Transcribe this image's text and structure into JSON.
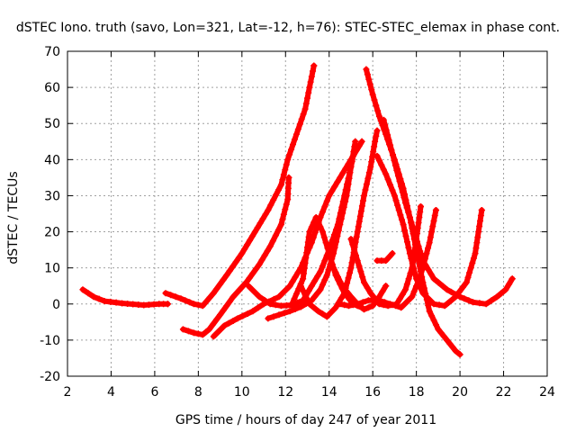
{
  "chart_data": {
    "type": "scatter",
    "title": "dSTEC Iono. truth (savo, Lon=321, Lat=-12, h=76): STEC-STEC_elemax in phase cont.",
    "xlabel": "GPS time / hours of day 247 of year 2011",
    "ylabel": "dSTEC  / TECUs",
    "xlim": [
      2,
      24
    ],
    "ylim": [
      -20,
      70
    ],
    "xticks": [
      2,
      4,
      6,
      8,
      10,
      12,
      14,
      16,
      18,
      20,
      22,
      24
    ],
    "yticks": [
      -20,
      -10,
      0,
      10,
      20,
      30,
      40,
      50,
      60,
      70
    ],
    "grid": true,
    "marker": "plus",
    "color": "#ff0000",
    "series": [
      {
        "points": [
          [
            2.7,
            4
          ],
          [
            3.2,
            2
          ],
          [
            3.7,
            0.8
          ],
          [
            4.5,
            0.2
          ],
          [
            5.5,
            -0.3
          ],
          [
            6.2,
            0
          ],
          [
            6.6,
            0
          ]
        ]
      },
      {
        "points": [
          [
            6.5,
            3
          ],
          [
            7.2,
            1.5
          ],
          [
            7.8,
            0
          ],
          [
            8.2,
            -0.5
          ],
          [
            8.7,
            3
          ],
          [
            9.3,
            8
          ],
          [
            10,
            14
          ],
          [
            10.6,
            20
          ],
          [
            11.2,
            26
          ],
          [
            11.8,
            33
          ],
          [
            12.1,
            40
          ],
          [
            12.5,
            47
          ],
          [
            12.9,
            54
          ],
          [
            13.1,
            60
          ],
          [
            13.3,
            66
          ]
        ]
      },
      {
        "points": [
          [
            7.3,
            -7
          ],
          [
            7.8,
            -8
          ],
          [
            8.2,
            -8.5
          ],
          [
            8.5,
            -7
          ],
          [
            9,
            -3
          ],
          [
            9.6,
            2
          ],
          [
            10.2,
            6
          ],
          [
            10.8,
            11
          ],
          [
            11.3,
            16
          ],
          [
            11.8,
            22
          ],
          [
            12.1,
            29
          ],
          [
            12.15,
            35
          ]
        ]
      },
      {
        "points": [
          [
            8.7,
            -9
          ],
          [
            9.2,
            -6
          ],
          [
            9.8,
            -4
          ],
          [
            10.5,
            -2
          ],
          [
            11,
            0
          ],
          [
            11.7,
            2
          ],
          [
            12.2,
            5
          ],
          [
            12.7,
            10
          ],
          [
            13.2,
            17
          ],
          [
            13.6,
            24
          ],
          [
            14,
            30
          ],
          [
            14.5,
            35
          ],
          [
            15,
            40
          ],
          [
            15.5,
            45
          ]
        ]
      },
      {
        "points": [
          [
            10.3,
            5
          ],
          [
            10.8,
            2
          ],
          [
            11.3,
            0
          ],
          [
            11.8,
            -0.5
          ],
          [
            12.3,
            -0.3
          ],
          [
            12.8,
            1
          ],
          [
            13.2,
            5
          ],
          [
            13.6,
            9
          ],
          [
            14,
            15
          ],
          [
            14.4,
            22
          ],
          [
            14.7,
            30
          ],
          [
            15,
            38
          ],
          [
            15.2,
            45
          ]
        ]
      },
      {
        "points": [
          [
            11.2,
            -4
          ],
          [
            11.7,
            -3
          ],
          [
            12.2,
            -2
          ],
          [
            12.7,
            -0.8
          ],
          [
            13.2,
            1
          ],
          [
            13.6,
            4
          ],
          [
            13.9,
            8
          ],
          [
            14.2,
            14
          ],
          [
            14.5,
            22
          ],
          [
            14.8,
            30
          ],
          [
            15.0,
            38
          ],
          [
            15.2,
            44
          ]
        ]
      },
      {
        "points": [
          [
            12.3,
            0
          ],
          [
            12.8,
            7
          ],
          [
            13.1,
            20
          ],
          [
            13.4,
            24
          ],
          [
            13.7,
            20
          ],
          [
            14,
            14
          ],
          [
            14.3,
            8
          ],
          [
            14.7,
            3
          ],
          [
            15.1,
            0
          ],
          [
            15.5,
            -1
          ]
        ]
      },
      {
        "points": [
          [
            12.7,
            5
          ],
          [
            13.1,
            0
          ],
          [
            13.5,
            -2
          ],
          [
            13.9,
            -3.5
          ],
          [
            14.3,
            -1
          ],
          [
            14.7,
            3
          ],
          [
            15.0,
            10
          ],
          [
            15.3,
            20
          ],
          [
            15.6,
            30
          ],
          [
            15.9,
            38
          ],
          [
            16.1,
            45
          ],
          [
            16.2,
            48
          ]
        ]
      },
      {
        "points": [
          [
            14.2,
            10
          ],
          [
            14.6,
            5
          ],
          [
            15.0,
            2
          ],
          [
            15.3,
            0
          ],
          [
            15.6,
            -1.5
          ],
          [
            16.0,
            -0.5
          ],
          [
            16.3,
            2
          ],
          [
            16.6,
            5
          ]
        ]
      },
      {
        "points": [
          [
            14.5,
            0
          ],
          [
            14.9,
            -0.5
          ],
          [
            15.3,
            0
          ],
          [
            15.8,
            1
          ],
          [
            16.3,
            1
          ],
          [
            16.8,
            0
          ],
          [
            17.3,
            -1
          ],
          [
            17.8,
            2
          ],
          [
            18.2,
            8
          ],
          [
            18.6,
            17
          ],
          [
            18.9,
            26
          ]
        ]
      },
      {
        "points": [
          [
            15.0,
            18
          ],
          [
            15.3,
            12
          ],
          [
            15.6,
            6
          ],
          [
            15.9,
            3
          ],
          [
            16.3,
            0
          ],
          [
            16.7,
            -0.5
          ],
          [
            17.1,
            0
          ],
          [
            17.5,
            4
          ],
          [
            17.8,
            10
          ],
          [
            18.0,
            18
          ],
          [
            18.2,
            27
          ]
        ]
      },
      {
        "points": [
          [
            15.7,
            65
          ],
          [
            16.0,
            58
          ],
          [
            16.3,
            52
          ],
          [
            16.6,
            47
          ],
          [
            17.0,
            40
          ],
          [
            17.4,
            32
          ],
          [
            17.7,
            24
          ],
          [
            18.0,
            15
          ],
          [
            18.3,
            6
          ],
          [
            18.6,
            -2
          ],
          [
            19.0,
            -7
          ],
          [
            19.4,
            -10
          ],
          [
            19.8,
            -13
          ],
          [
            20.0,
            -14
          ]
        ]
      },
      {
        "points": [
          [
            16.2,
            41
          ],
          [
            16.6,
            36
          ],
          [
            17.0,
            30
          ],
          [
            17.4,
            22
          ],
          [
            17.7,
            14
          ],
          [
            18.0,
            7
          ],
          [
            18.3,
            3
          ],
          [
            18.8,
            0
          ],
          [
            19.3,
            -0.5
          ],
          [
            19.8,
            2
          ],
          [
            20.3,
            6
          ],
          [
            20.7,
            14
          ],
          [
            21.0,
            26
          ]
        ]
      },
      {
        "points": [
          [
            16.5,
            51
          ],
          [
            16.8,
            44
          ],
          [
            17.1,
            37
          ],
          [
            17.5,
            28
          ],
          [
            17.9,
            20
          ],
          [
            18.3,
            12
          ],
          [
            18.8,
            7
          ],
          [
            19.4,
            4
          ],
          [
            20.0,
            2
          ],
          [
            20.6,
            0.5
          ],
          [
            21.2,
            0
          ],
          [
            21.7,
            2
          ],
          [
            22.1,
            4
          ],
          [
            22.4,
            7
          ]
        ]
      },
      {
        "points": [
          [
            16.2,
            12
          ],
          [
            16.6,
            12
          ],
          [
            16.9,
            14
          ]
        ]
      }
    ]
  }
}
